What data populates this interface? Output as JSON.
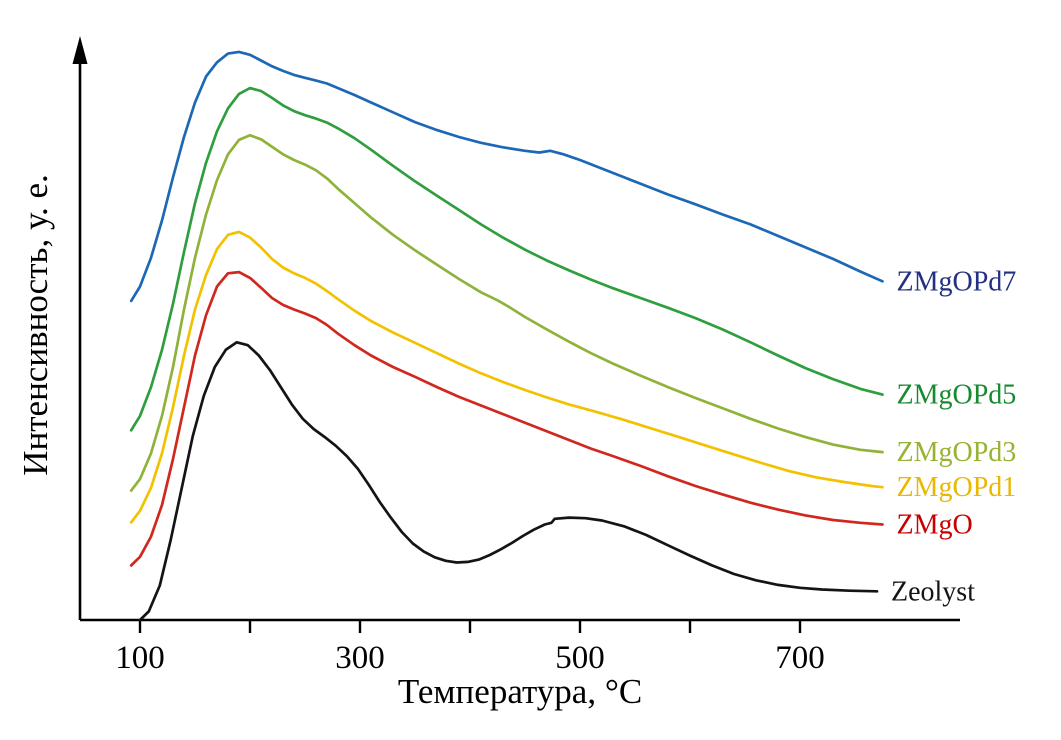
{
  "figure": {
    "background": "#ffffff",
    "y_axis_title": "Интенсивность, у. е.",
    "x_axis_title": "Температура, °C"
  },
  "chart_data": {
    "type": "line",
    "title": "",
    "xlabel": "Температура, °C",
    "ylabel": "Интенсивность, у. е.",
    "xlim": [
      45,
      860
    ],
    "ylim": [
      0,
      105
    ],
    "grid": false,
    "legend_position": "curve-end-labels-right",
    "x_tick_marks": [
      100,
      200,
      300,
      400,
      500,
      600,
      700
    ],
    "x_tick_labels": [
      {
        "value": 100,
        "text": "100"
      },
      {
        "value": 300,
        "text": "300"
      },
      {
        "value": 500,
        "text": "500"
      },
      {
        "value": 700,
        "text": "700"
      }
    ],
    "axis_color": "#000000",
    "series": [
      {
        "name": "Zeolyst",
        "color": "#141414",
        "label_color": "#141414",
        "points": [
          [
            100,
            0
          ],
          [
            108,
            1.5
          ],
          [
            118,
            6
          ],
          [
            128,
            14
          ],
          [
            138,
            23
          ],
          [
            148,
            32
          ],
          [
            158,
            39
          ],
          [
            168,
            44
          ],
          [
            178,
            47
          ],
          [
            188,
            48.3
          ],
          [
            198,
            47.8
          ],
          [
            208,
            46
          ],
          [
            218,
            43.5
          ],
          [
            228,
            40.5
          ],
          [
            238,
            37.5
          ],
          [
            248,
            35
          ],
          [
            258,
            33.2
          ],
          [
            268,
            31.8
          ],
          [
            278,
            30.3
          ],
          [
            288,
            28.5
          ],
          [
            298,
            26.3
          ],
          [
            308,
            23.5
          ],
          [
            318,
            20.5
          ],
          [
            328,
            17.8
          ],
          [
            338,
            15.3
          ],
          [
            348,
            13.3
          ],
          [
            358,
            11.9
          ],
          [
            368,
            10.9
          ],
          [
            378,
            10.3
          ],
          [
            388,
            10
          ],
          [
            398,
            10.1
          ],
          [
            408,
            10.5
          ],
          [
            418,
            11.3
          ],
          [
            428,
            12.3
          ],
          [
            438,
            13.4
          ],
          [
            448,
            14.6
          ],
          [
            458,
            15.7
          ],
          [
            468,
            16.6
          ],
          [
            474,
            16.9
          ],
          [
            477,
            17.6
          ],
          [
            490,
            17.8
          ],
          [
            505,
            17.7
          ],
          [
            520,
            17.3
          ],
          [
            540,
            16.3
          ],
          [
            560,
            14.8
          ],
          [
            580,
            13
          ],
          [
            600,
            11.2
          ],
          [
            620,
            9.5
          ],
          [
            640,
            8
          ],
          [
            660,
            6.9
          ],
          [
            680,
            6.1
          ],
          [
            700,
            5.6
          ],
          [
            720,
            5.3
          ],
          [
            745,
            5.1
          ],
          [
            770,
            5
          ]
        ]
      },
      {
        "name": "ZMgO",
        "color": "#d0281e",
        "label_color": "#c80000",
        "points": [
          [
            92,
            9.5
          ],
          [
            100,
            11
          ],
          [
            110,
            14.5
          ],
          [
            120,
            20
          ],
          [
            130,
            28
          ],
          [
            140,
            37
          ],
          [
            150,
            46
          ],
          [
            160,
            53
          ],
          [
            170,
            58
          ],
          [
            180,
            60.3
          ],
          [
            190,
            60.5
          ],
          [
            200,
            59.5
          ],
          [
            210,
            57.8
          ],
          [
            220,
            56
          ],
          [
            230,
            54.8
          ],
          [
            240,
            54
          ],
          [
            250,
            53.3
          ],
          [
            260,
            52.5
          ],
          [
            270,
            51.3
          ],
          [
            280,
            49.8
          ],
          [
            295,
            47.8
          ],
          [
            310,
            46
          ],
          [
            330,
            44
          ],
          [
            350,
            42.3
          ],
          [
            370,
            40.5
          ],
          [
            390,
            38.8
          ],
          [
            410,
            37.3
          ],
          [
            430,
            35.8
          ],
          [
            450,
            34.3
          ],
          [
            470,
            32.8
          ],
          [
            490,
            31.3
          ],
          [
            510,
            29.8
          ],
          [
            530,
            28.5
          ],
          [
            555,
            26.8
          ],
          [
            580,
            25
          ],
          [
            605,
            23.3
          ],
          [
            630,
            21.8
          ],
          [
            655,
            20.4
          ],
          [
            680,
            19.2
          ],
          [
            705,
            18.2
          ],
          [
            730,
            17.4
          ],
          [
            755,
            16.9
          ],
          [
            775,
            16.6
          ]
        ]
      },
      {
        "name": "ZMgOPd1",
        "color": "#f2c200",
        "label_color": "#e9b800",
        "points": [
          [
            92,
            17
          ],
          [
            100,
            19
          ],
          [
            110,
            23
          ],
          [
            120,
            29
          ],
          [
            130,
            37
          ],
          [
            140,
            46
          ],
          [
            150,
            54
          ],
          [
            160,
            60
          ],
          [
            170,
            64.5
          ],
          [
            180,
            67
          ],
          [
            190,
            67.5
          ],
          [
            200,
            66.5
          ],
          [
            210,
            64.8
          ],
          [
            220,
            62.8
          ],
          [
            230,
            61.3
          ],
          [
            240,
            60.3
          ],
          [
            250,
            59.5
          ],
          [
            260,
            58.5
          ],
          [
            270,
            57.2
          ],
          [
            280,
            55.8
          ],
          [
            295,
            53.8
          ],
          [
            310,
            52
          ],
          [
            330,
            50
          ],
          [
            350,
            48.2
          ],
          [
            370,
            46.4
          ],
          [
            390,
            44.6
          ],
          [
            410,
            42.9
          ],
          [
            430,
            41.4
          ],
          [
            450,
            40
          ],
          [
            470,
            38.7
          ],
          [
            490,
            37.5
          ],
          [
            515,
            36.2
          ],
          [
            540,
            34.8
          ],
          [
            565,
            33.3
          ],
          [
            590,
            31.8
          ],
          [
            615,
            30.3
          ],
          [
            640,
            28.8
          ],
          [
            665,
            27.3
          ],
          [
            690,
            25.9
          ],
          [
            715,
            24.8
          ],
          [
            740,
            24
          ],
          [
            765,
            23.3
          ],
          [
            775,
            23.1
          ]
        ]
      },
      {
        "name": "ZMgOPd3",
        "color": "#8fb33a",
        "label_color": "#97b332",
        "points": [
          [
            92,
            22.5
          ],
          [
            100,
            24.5
          ],
          [
            110,
            29
          ],
          [
            120,
            35.5
          ],
          [
            130,
            44
          ],
          [
            140,
            54
          ],
          [
            150,
            63
          ],
          [
            160,
            70.5
          ],
          [
            170,
            76.5
          ],
          [
            180,
            81
          ],
          [
            190,
            83.5
          ],
          [
            200,
            84.3
          ],
          [
            210,
            83.6
          ],
          [
            220,
            82.3
          ],
          [
            230,
            81
          ],
          [
            240,
            80
          ],
          [
            250,
            79.2
          ],
          [
            260,
            78.2
          ],
          [
            270,
            76.8
          ],
          [
            280,
            75
          ],
          [
            295,
            72.5
          ],
          [
            310,
            70
          ],
          [
            330,
            67
          ],
          [
            350,
            64.3
          ],
          [
            370,
            61.8
          ],
          [
            390,
            59.3
          ],
          [
            410,
            57
          ],
          [
            425,
            55.6
          ],
          [
            435,
            54.5
          ],
          [
            450,
            52.7
          ],
          [
            470,
            50.5
          ],
          [
            490,
            48.4
          ],
          [
            510,
            46.4
          ],
          [
            530,
            44.6
          ],
          [
            555,
            42.5
          ],
          [
            580,
            40.5
          ],
          [
            605,
            38.6
          ],
          [
            630,
            36.8
          ],
          [
            655,
            35
          ],
          [
            680,
            33.3
          ],
          [
            705,
            31.8
          ],
          [
            730,
            30.5
          ],
          [
            755,
            29.6
          ],
          [
            775,
            29.2
          ]
        ]
      },
      {
        "name": "ZMgOPd5",
        "color": "#2f9e3e",
        "label_color": "#168a30",
        "points": [
          [
            92,
            33
          ],
          [
            100,
            35.5
          ],
          [
            110,
            40.5
          ],
          [
            120,
            47
          ],
          [
            130,
            55
          ],
          [
            140,
            64
          ],
          [
            150,
            72.5
          ],
          [
            160,
            79.5
          ],
          [
            170,
            85
          ],
          [
            180,
            89
          ],
          [
            190,
            91.5
          ],
          [
            200,
            92.5
          ],
          [
            210,
            92
          ],
          [
            220,
            90.8
          ],
          [
            230,
            89.5
          ],
          [
            240,
            88.5
          ],
          [
            250,
            87.8
          ],
          [
            260,
            87.2
          ],
          [
            270,
            86.5
          ],
          [
            280,
            85.5
          ],
          [
            295,
            83.8
          ],
          [
            310,
            81.8
          ],
          [
            330,
            79
          ],
          [
            350,
            76.3
          ],
          [
            370,
            73.8
          ],
          [
            390,
            71.3
          ],
          [
            410,
            68.8
          ],
          [
            430,
            66.5
          ],
          [
            450,
            64.4
          ],
          [
            470,
            62.5
          ],
          [
            490,
            60.8
          ],
          [
            510,
            59.2
          ],
          [
            530,
            57.7
          ],
          [
            555,
            56
          ],
          [
            580,
            54.3
          ],
          [
            605,
            52.5
          ],
          [
            630,
            50.5
          ],
          [
            655,
            48.3
          ],
          [
            680,
            46
          ],
          [
            705,
            43.8
          ],
          [
            730,
            41.9
          ],
          [
            755,
            40.2
          ],
          [
            775,
            39.2
          ]
        ]
      },
      {
        "name": "ZMgOPd7",
        "color": "#1d68b5",
        "label_color": "#23307f",
        "points": [
          [
            92,
            55.5
          ],
          [
            100,
            58
          ],
          [
            110,
            63
          ],
          [
            120,
            69.5
          ],
          [
            130,
            77
          ],
          [
            140,
            84
          ],
          [
            150,
            90
          ],
          [
            160,
            94.5
          ],
          [
            170,
            97
          ],
          [
            180,
            98.5
          ],
          [
            190,
            98.8
          ],
          [
            200,
            98.3
          ],
          [
            210,
            97.3
          ],
          [
            220,
            96.3
          ],
          [
            230,
            95.5
          ],
          [
            240,
            94.8
          ],
          [
            250,
            94.3
          ],
          [
            260,
            93.8
          ],
          [
            270,
            93.3
          ],
          [
            280,
            92.5
          ],
          [
            295,
            91.3
          ],
          [
            310,
            90
          ],
          [
            330,
            88.3
          ],
          [
            350,
            86.6
          ],
          [
            370,
            85.2
          ],
          [
            390,
            84
          ],
          [
            410,
            83
          ],
          [
            430,
            82.2
          ],
          [
            450,
            81.6
          ],
          [
            463,
            81.3
          ],
          [
            473,
            81.6
          ],
          [
            485,
            81
          ],
          [
            500,
            80
          ],
          [
            520,
            78.5
          ],
          [
            540,
            77
          ],
          [
            560,
            75.5
          ],
          [
            580,
            74
          ],
          [
            605,
            72.3
          ],
          [
            630,
            70.5
          ],
          [
            655,
            68.8
          ],
          [
            680,
            66.8
          ],
          [
            705,
            64.8
          ],
          [
            730,
            62.8
          ],
          [
            755,
            60.6
          ],
          [
            775,
            58.9
          ]
        ]
      }
    ]
  }
}
